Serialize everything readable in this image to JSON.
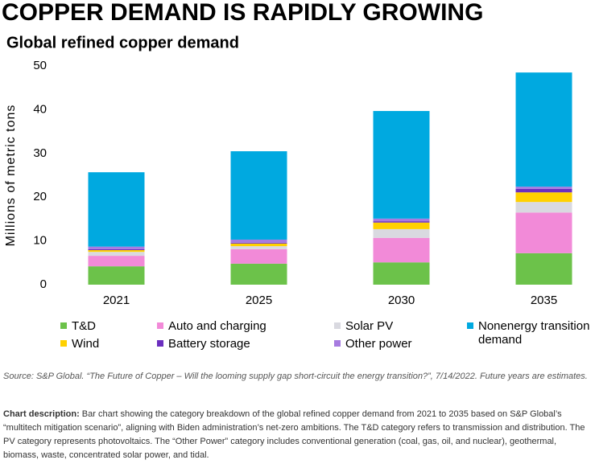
{
  "chart_data": {
    "type": "stacked_bar",
    "title": "COPPER DEMAND IS RAPIDLY GROWING",
    "subtitle": "Global refined copper demand",
    "y_label": "Millions of metric tons",
    "categories": [
      "2021",
      "2025",
      "2030",
      "2035"
    ],
    "series": [
      {
        "name": "T&D",
        "color": "#6cc24a",
        "values": [
          4.2,
          4.8,
          5.1,
          7.2
        ]
      },
      {
        "name": "Auto and charging",
        "color": "#f28ad8",
        "values": [
          2.4,
          3.3,
          5.6,
          9.3
        ]
      },
      {
        "name": "Solar PV",
        "color": "#d9d9e0",
        "values": [
          0.9,
          0.7,
          2.0,
          2.4
        ]
      },
      {
        "name": "Wind",
        "color": "#ffd100",
        "values": [
          0.4,
          0.6,
          1.5,
          2.2
        ]
      },
      {
        "name": "Battery storage",
        "color": "#6b2fbf",
        "values": [
          0.2,
          0.2,
          0.3,
          0.8
        ]
      },
      {
        "name": "Other power",
        "color": "#a77be0",
        "values": [
          0.6,
          0.7,
          0.6,
          0.5
        ]
      },
      {
        "name": "Nonenergy transition demand",
        "color": "#00a9e0",
        "values": [
          17.0,
          20.2,
          24.6,
          26.1
        ]
      }
    ],
    "ylim": [
      0,
      50
    ],
    "yticks": [
      0,
      10,
      20,
      30,
      40,
      50
    ],
    "grid": false,
    "source": "Source: S&P Global. “The Future of Copper – Will the looming supply gap short-circuit the energy transition?”, 7/14/2022. Future years are estimates.",
    "description_label": "Chart description:",
    "description": "Bar chart showing the category breakdown of the global refined copper demand from 2021 to 2035 based on S&P Global’s “multitech mitigation scenario”, aligning with Biden administration’s net-zero ambitions. The T&D category refers to transmission and distribution. The PV category represents photovoltaics. The “Other Power” category includes conventional generation (coal, gas, oil, and nuclear), geothermal, biomass, waste, concentrated solar power, and tidal."
  }
}
